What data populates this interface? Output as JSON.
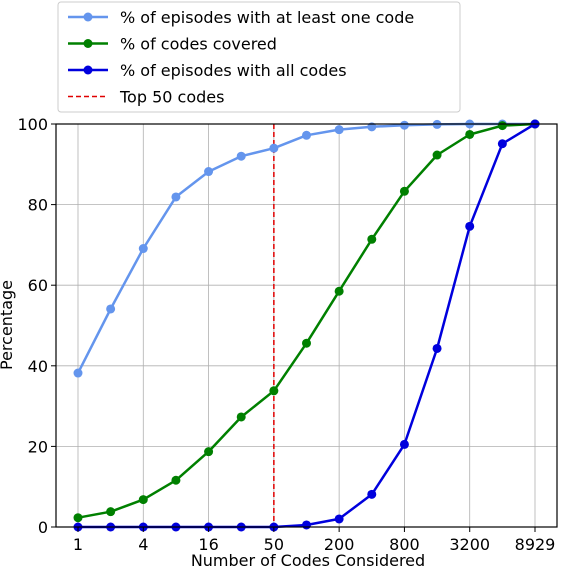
{
  "chart_data": {
    "type": "line",
    "xlabel": "Number of Codes Considered",
    "ylabel": "Percentage",
    "ylim": [
      0,
      100
    ],
    "yticks": [
      0,
      20,
      40,
      60,
      80,
      100
    ],
    "x_positions": 15,
    "x_tick_labels": [
      {
        "index": 0,
        "label": "1"
      },
      {
        "index": 2,
        "label": "4"
      },
      {
        "index": 4,
        "label": "16"
      },
      {
        "index": 6,
        "label": "50"
      },
      {
        "index": 8,
        "label": "200"
      },
      {
        "index": 10,
        "label": "800"
      },
      {
        "index": 12,
        "label": "3200"
      },
      {
        "index": 14,
        "label": "8929"
      }
    ],
    "grid": true,
    "legend_position": "top-left",
    "series": [
      {
        "name": "% of episodes with at least one code",
        "color": "#6495ed",
        "values": [
          38.2,
          54.1,
          69.1,
          81.9,
          88.2,
          92.0,
          94.0,
          97.2,
          98.6,
          99.3,
          99.7,
          99.9,
          100.0,
          100.0,
          100.0
        ]
      },
      {
        "name": "% of codes covered",
        "color": "#008000",
        "values": [
          2.3,
          3.8,
          6.8,
          11.6,
          18.7,
          27.3,
          33.8,
          45.6,
          58.5,
          71.4,
          83.3,
          92.3,
          97.4,
          99.6,
          100.0
        ]
      },
      {
        "name": "% of episodes with all codes",
        "color": "#0000dd",
        "values": [
          0.0,
          0.0,
          0.0,
          0.0,
          0.0,
          0.0,
          0.0,
          0.5,
          2.0,
          8.1,
          20.5,
          44.3,
          74.6,
          95.1,
          100.0
        ]
      }
    ],
    "reference_line": {
      "name": "Top 50 codes",
      "index": 6,
      "color": "#e00000"
    }
  }
}
